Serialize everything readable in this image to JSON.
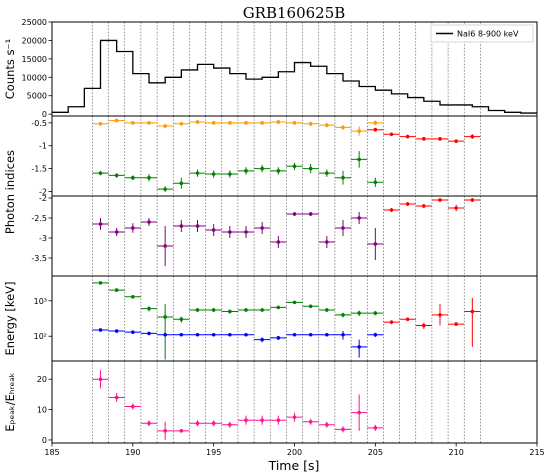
{
  "chart_data": {
    "type": "line",
    "title": "GRB160625B",
    "xlabel": "Time [s]",
    "xlim": [
      185,
      215
    ],
    "x_ticks": [
      185,
      190,
      195,
      200,
      205,
      210,
      215
    ],
    "bin_edges": [
      187.5,
      188.5,
      189.5,
      190.5,
      191.5,
      192.5,
      193.5,
      194.5,
      195.5,
      196.5,
      197.5,
      198.5,
      199.5,
      200.5,
      201.5,
      202.5,
      203.5,
      204.5,
      205.5,
      206.5,
      207.5,
      208.5,
      209.5,
      210.5,
      211.5
    ],
    "panels": [
      {
        "ylabel": "Counts s⁻¹",
        "ylim": [
          -500,
          25000
        ],
        "y_ticks": [
          0,
          5000,
          10000,
          15000,
          20000,
          25000
        ],
        "legend": {
          "position": "top-right",
          "entries": [
            "NaI6 8-900 keV"
          ]
        },
        "series": [
          {
            "name": "NaI6 8-900 keV",
            "color": "#000000",
            "style": "step",
            "step_x": [
              185,
              186,
              187,
              188,
              189,
              190,
              191,
              192,
              193,
              194,
              195,
              196,
              197,
              198,
              199,
              200,
              201,
              202,
              203,
              204,
              205,
              206,
              207,
              208,
              209,
              210,
              211,
              212,
              213,
              214,
              215
            ],
            "values": [
              500,
              2000,
              7000,
              20000,
              17000,
              11000,
              8500,
              10000,
              12000,
              13500,
              12500,
              11000,
              9500,
              10000,
              11500,
              14000,
              13000,
              11000,
              9000,
              7500,
              6500,
              5500,
              4500,
              3500,
              2500,
              2500,
              2000,
              1000,
              500,
              300
            ]
          }
        ]
      },
      {
        "ylabel": "Photon indices",
        "ylim": [
          -2.1,
          -0.35
        ],
        "y_ticks": [
          -0.5,
          -1.0,
          -1.5,
          -2.0
        ],
        "series": [
          {
            "color": "#ff9900",
            "x": [
              188,
              189,
              190,
              191,
              192,
              193,
              194,
              195,
              196,
              197,
              198,
              199,
              200,
              201,
              202,
              203,
              204,
              205
            ],
            "values": [
              -0.52,
              -0.45,
              -0.5,
              -0.5,
              -0.57,
              -0.52,
              -0.48,
              -0.5,
              -0.5,
              -0.5,
              -0.5,
              -0.48,
              -0.5,
              -0.52,
              -0.55,
              -0.6,
              -0.68,
              -0.5
            ],
            "errors": [
              0.04,
              0.04,
              0.04,
              0.04,
              0.05,
              0.04,
              0.04,
              0.04,
              0.04,
              0.04,
              0.04,
              0.04,
              0.04,
              0.05,
              0.05,
              0.05,
              0.1,
              0.05
            ]
          },
          {
            "color": "#ff0000",
            "x": [
              205,
              206,
              207,
              208,
              209,
              210,
              211
            ],
            "values": [
              -0.65,
              -0.75,
              -0.8,
              -0.85,
              -0.85,
              -0.9,
              -0.8
            ],
            "errors": [
              0.04,
              0.04,
              0.04,
              0.04,
              0.04,
              0.04,
              0.05
            ]
          },
          {
            "color": "#008000",
            "x": [
              188,
              189,
              190,
              191,
              192,
              193,
              194,
              195,
              196,
              197,
              198,
              199,
              200,
              201,
              202,
              203,
              204,
              205
            ],
            "values": [
              -1.6,
              -1.65,
              -1.7,
              -1.7,
              -1.95,
              -1.82,
              -1.6,
              -1.62,
              -1.62,
              -1.55,
              -1.5,
              -1.55,
              -1.45,
              -1.5,
              -1.6,
              -1.7,
              -1.3,
              -1.8
            ],
            "errors": [
              0.05,
              0.05,
              0.05,
              0.08,
              0.06,
              0.12,
              0.08,
              0.08,
              0.08,
              0.08,
              0.08,
              0.08,
              0.08,
              0.1,
              0.08,
              0.15,
              0.18,
              0.1
            ]
          }
        ]
      },
      {
        "ylabel": "",
        "ylim": [
          -3.95,
          -1.95
        ],
        "y_ticks": [
          -2.0,
          -2.5,
          -3.0,
          -3.5
        ],
        "series": [
          {
            "color": "#800080",
            "x": [
              188,
              189,
              190,
              191,
              192,
              193,
              194,
              195,
              196,
              197,
              198,
              199,
              200,
              201,
              202,
              203,
              204,
              205
            ],
            "values": [
              -2.65,
              -2.85,
              -2.75,
              -2.6,
              -3.2,
              -2.7,
              -2.7,
              -2.8,
              -2.85,
              -2.85,
              -2.75,
              -3.1,
              -2.4,
              -2.4,
              -3.1,
              -2.75,
              -2.5,
              -3.15
            ],
            "errors": [
              0.15,
              0.1,
              0.12,
              0.1,
              0.5,
              0.15,
              0.15,
              0.15,
              0.15,
              0.15,
              0.15,
              0.15,
              0.05,
              0.05,
              0.15,
              0.2,
              0.15,
              0.4
            ]
          },
          {
            "color": "#ff0000",
            "x": [
              206,
              207,
              208,
              209,
              210,
              211
            ],
            "values": [
              -2.3,
              -2.15,
              -2.2,
              -2.05,
              -2.25,
              -2.05
            ],
            "errors": [
              0.05,
              0.05,
              0.05,
              0.05,
              0.08,
              0.05
            ]
          }
        ]
      },
      {
        "ylabel": "Energy [keV]",
        "scale": "log",
        "ylim": [
          20,
          5000
        ],
        "y_ticks": [
          100,
          1000
        ],
        "y_tick_labels": [
          "10²",
          "10³"
        ],
        "series": [
          {
            "color": "#008000",
            "x": [
              188,
              189,
              190,
              191,
              192,
              193,
              194,
              195,
              196,
              197,
              198,
              199,
              200,
              201,
              202,
              203,
              204,
              205
            ],
            "values": [
              3200,
              2000,
              1300,
              600,
              350,
              300,
              550,
              550,
              500,
              550,
              550,
              650,
              900,
              700,
              550,
              400,
              450,
              450
            ],
            "errors_low": [
              300,
              200,
              150,
              100,
              328,
              60,
              60,
              60,
              60,
              60,
              60,
              60,
              80,
              80,
              60,
              60,
              80,
              60
            ],
            "errors_high": [
              300,
              200,
              150,
              100,
              450,
              60,
              60,
              60,
              60,
              60,
              60,
              60,
              80,
              80,
              60,
              60,
              80,
              60
            ]
          },
          {
            "color": "#0000ff",
            "x": [
              188,
              189,
              190,
              191,
              192,
              193,
              194,
              195,
              196,
              197,
              198,
              199,
              200,
              201,
              202,
              203,
              204,
              205
            ],
            "values": [
              150,
              140,
              130,
              120,
              110,
              110,
              110,
              110,
              110,
              110,
              80,
              90,
              110,
              110,
              110,
              110,
              50,
              110
            ],
            "errors_low": [
              10,
              10,
              10,
              10,
              10,
              10,
              10,
              10,
              10,
              10,
              12,
              12,
              10,
              10,
              10,
              30,
              25,
              15
            ],
            "errors_high": [
              10,
              10,
              10,
              10,
              10,
              10,
              10,
              10,
              10,
              10,
              12,
              12,
              10,
              10,
              10,
              30,
              30,
              15
            ]
          },
          {
            "color": "#ff0000",
            "x": [
              206,
              207,
              208,
              209,
              210,
              211
            ],
            "values": [
              250,
              300,
              200,
              400,
              220,
              500
            ],
            "errors_low": [
              30,
              30,
              40,
              200,
              20,
              450
            ],
            "errors_high": [
              30,
              30,
              40,
              400,
              20,
              700
            ]
          }
        ]
      },
      {
        "ylabel": "Eₚₑₐₖ/Eₕᵣₑₐₖ",
        "ylim": [
          -1,
          26
        ],
        "y_ticks": [
          0,
          10,
          20
        ],
        "series": [
          {
            "color": "#ff1493",
            "x": [
              188,
              189,
              190,
              191,
              192,
              193,
              194,
              195,
              196,
              197,
              198,
              199,
              200,
              201,
              202,
              203,
              204,
              205
            ],
            "values": [
              20,
              14,
              11,
              5.5,
              3,
              3,
              5.5,
              5.5,
              5,
              6.5,
              6.5,
              6.5,
              7.5,
              6,
              5,
              3.5,
              9,
              4
            ],
            "errors": [
              3,
              1.5,
              1,
              1,
              3,
              0.6,
              1,
              1,
              1,
              1.5,
              1.5,
              1.5,
              1.5,
              1,
              1,
              1,
              6,
              1
            ]
          }
        ]
      }
    ]
  }
}
